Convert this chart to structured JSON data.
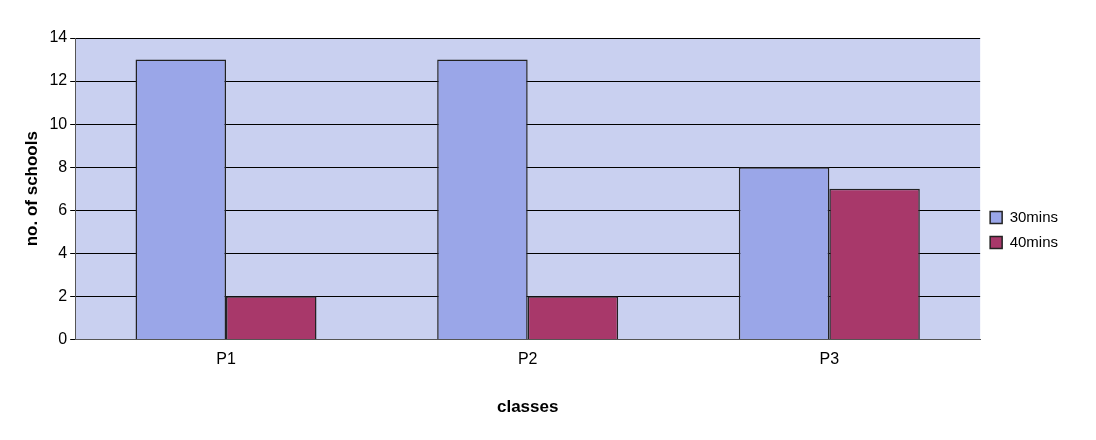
{
  "chart_data": {
    "type": "bar",
    "xlabel": "classes",
    "ylabel": "no. of schools",
    "categories": [
      "P1",
      "P2",
      "P3"
    ],
    "series": [
      {
        "name": "30mins",
        "color": "#9aa6e8",
        "values": [
          13,
          13,
          8
        ]
      },
      {
        "name": "40mins",
        "color": "#a8386a",
        "values": [
          2,
          2,
          7
        ]
      }
    ],
    "ylim": [
      0,
      14
    ],
    "yticks": [
      0,
      2,
      4,
      6,
      8,
      10,
      12,
      14
    ],
    "grid": "y",
    "legend": "right"
  }
}
